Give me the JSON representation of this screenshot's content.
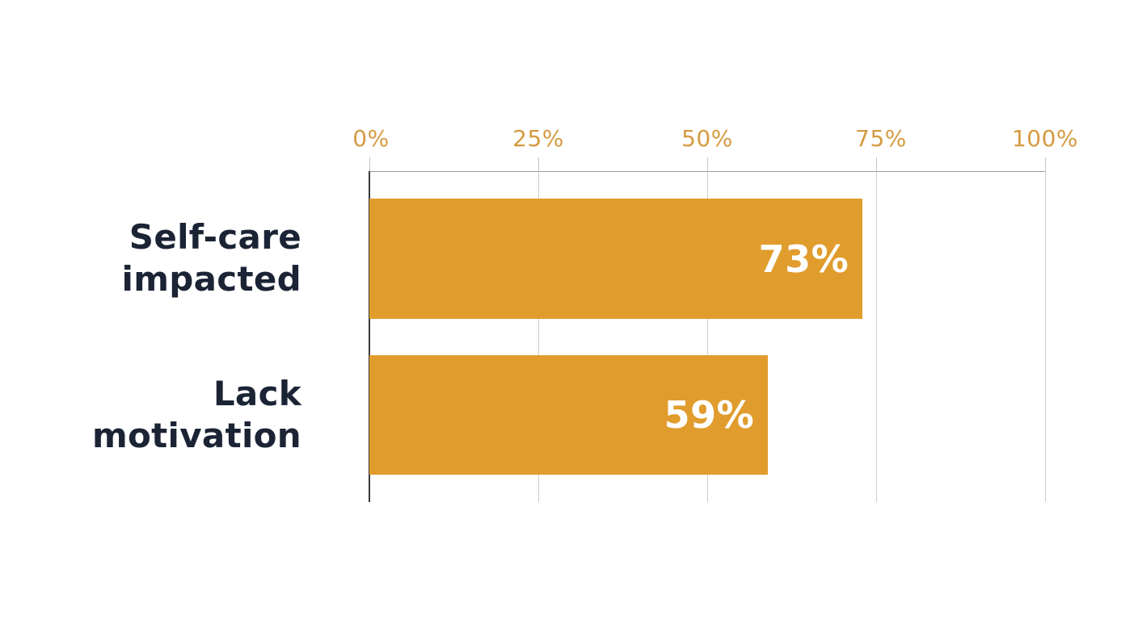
{
  "page": {
    "background": "#ffffff"
  },
  "colors": {
    "bar": "#e09c2d",
    "tick_label": "#d59b41",
    "category_label": "#1b2435",
    "value_label": "#ffffff",
    "gridline": "#cccccc",
    "axis_line": "#3a3a3a",
    "top_border": "#9a9a9a"
  },
  "chart_data": {
    "type": "bar",
    "orientation": "horizontal",
    "title": "",
    "categories": [
      "Self-care impacted",
      "Lack motivation"
    ],
    "values": [
      73,
      59
    ],
    "x_ticks": [
      "0%",
      "25%",
      "50%",
      "75%",
      "100%"
    ],
    "xlim": [
      0,
      100
    ],
    "grid": true,
    "legend": false,
    "rows": [
      {
        "label_line1": "Self-care",
        "label_line2": "impacted",
        "value": 73,
        "value_label": "73%"
      },
      {
        "label_line1": "Lack",
        "label_line2": "motivation",
        "value": 59,
        "value_label": "59%"
      }
    ]
  }
}
